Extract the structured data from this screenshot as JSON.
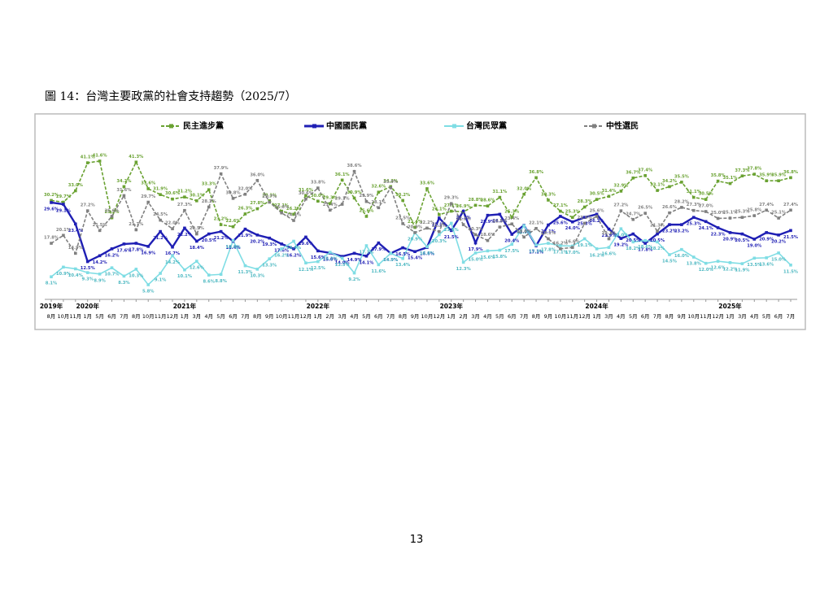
{
  "chart_data": {
    "type": "line",
    "title": "圖 14：台灣主要政黨的社會支持趨勢（2025/7）",
    "categories": [
      "8月",
      "10月",
      "11月",
      "1月",
      "5月",
      "6月",
      "7月",
      "8月",
      "10月",
      "11月",
      "12月",
      "1月",
      "3月",
      "4月",
      "5月",
      "6月",
      "7月",
      "8月",
      "9月",
      "10月",
      "11月",
      "12月",
      "1月",
      "2月",
      "3月",
      "4月",
      "5月",
      "6月",
      "7月",
      "8月",
      "9月",
      "10月",
      "12月",
      "1月",
      "2月",
      "3月",
      "4月",
      "5月",
      "6月",
      "7月",
      "8月",
      "9月",
      "10月",
      "11月",
      "12月",
      "1月",
      "3月",
      "4月",
      "5月",
      "6月",
      "7月",
      "8月",
      "9月",
      "10月",
      "11月",
      "12月",
      "1月",
      "3月",
      "4月",
      "5月",
      "6月",
      "7月"
    ],
    "years": [
      "2019年",
      null,
      null,
      "2020年",
      null,
      null,
      null,
      null,
      null,
      null,
      null,
      "2021年",
      null,
      null,
      null,
      null,
      null,
      null,
      null,
      null,
      null,
      null,
      "2022年",
      null,
      null,
      null,
      null,
      null,
      null,
      null,
      null,
      null,
      null,
      "2023年",
      null,
      null,
      null,
      null,
      null,
      null,
      null,
      null,
      null,
      null,
      null,
      "2024年",
      null,
      null,
      null,
      null,
      null,
      null,
      null,
      null,
      null,
      null,
      "2025年",
      null,
      null,
      null,
      null,
      null
    ],
    "series": [
      {
        "name": "民主進步黨",
        "color": "#6aa232",
        "dash": true,
        "values": [
          30.2,
          29.7,
          33.0,
          41.1,
          41.6,
          25.2,
          34.2,
          41.3,
          33.6,
          31.9,
          30.6,
          31.2,
          30.1,
          33.3,
          23.2,
          22.6,
          26.3,
          27.8,
          30.1,
          27.1,
          26.2,
          31.6,
          30.0,
          29.3,
          36.1,
          30.9,
          25.6,
          32.6,
          34.2,
          30.2,
          22.4,
          33.6,
          26.1,
          27.1,
          26.9,
          28.8,
          28.6,
          31.1,
          25.3,
          32.0,
          36.8,
          30.3,
          27.1,
          25.3,
          28.3,
          30.5,
          31.4,
          32.9,
          36.7,
          37.4,
          33.1,
          34.2,
          35.5,
          31.1,
          30.5,
          35.8,
          35.1,
          37.3,
          37.8,
          35.9,
          35.9,
          36.8
        ],
        "value_labels": [
          "30.2%",
          "29.7%",
          "33.0%",
          "41.1%",
          "41.6%",
          "25.2%",
          "34.2%",
          "41.3%",
          "33.6%",
          "31.9%",
          "30.6%",
          "31.2%",
          "30.1%",
          "33.3%",
          "23.2%",
          "22.6%",
          "26.3%",
          "27.8%",
          "30.1%",
          "27.1%",
          "26.2%",
          "31.6%",
          "30.0%",
          "29.3%",
          "36.1%",
          "30.9%",
          "25.6%",
          "32.6%",
          "34.2%",
          "30.2%",
          "22.4%",
          "33.6%",
          "26.1%",
          "27.1%",
          "26.9%",
          "28.8%",
          "28.6%",
          "31.1%",
          "25.3%",
          "32.0%",
          "36.8%",
          "30.3%",
          "27.1%",
          "25.3%",
          "28.3%",
          "30.5%",
          "31.4%",
          "32.9%",
          "36.7%",
          "37.4%",
          "33.1%",
          "34.2%",
          "35.5%",
          "31.1%",
          "30.5%",
          "35.8%",
          "35.1%",
          "37.3%",
          "37.8%",
          "35.9%",
          "35.9%",
          "36.8%"
        ]
      },
      {
        "name": "中國國民黨",
        "color": "#1f1fb4",
        "dash": false,
        "values": [
          29.6,
          29.1,
          23.4,
          12.5,
          14.2,
          16.2,
          17.6,
          17.8,
          16.9,
          21.2,
          16.7,
          22.2,
          18.4,
          20.5,
          21.2,
          18.4,
          21.9,
          20.2,
          19.3,
          17.6,
          16.2,
          19.6,
          15.6,
          15.0,
          14.0,
          14.9,
          14.1,
          17.9,
          14.9,
          16.5,
          15.4,
          16.6,
          25.1,
          21.5,
          27.1,
          17.9,
          25.9,
          26.2,
          20.4,
          23.0,
          17.1,
          23.1,
          25.6,
          24.0,
          25.3,
          26.2,
          21.9,
          19.2,
          20.5,
          17.8,
          20.5,
          23.2,
          23.2,
          25.3,
          24.1,
          22.3,
          20.9,
          20.5,
          19.0,
          20.9,
          20.2,
          21.5
        ],
        "value_labels": [
          "29.6%",
          "29.1%",
          "23.4%",
          "12.5%",
          "14.2%",
          "16.2%",
          "17.6%",
          "17.8%",
          "16.9%",
          "21.2%",
          "16.7%",
          "22.2%",
          "18.4%",
          "20.5%",
          "21.2%",
          "18.4%",
          "21.9%",
          "20.2%",
          "19.3%",
          "17.6%",
          "16.2%",
          "19.6%",
          "15.6%",
          "15.0%",
          "14.0%",
          "14.9%",
          "14.1%",
          "17.9%",
          "14.9%",
          "16.5%",
          "15.4%",
          "16.6%",
          "25.1%",
          "21.5%",
          "27.1%",
          "17.9%",
          "25.9%",
          "26.2%",
          "20.4%",
          "23.0%",
          "17.1%",
          "23.1%",
          "25.6%",
          "24.0%",
          "25.3%",
          "26.2%",
          "21.9%",
          "19.2%",
          "20.5%",
          "17.8%",
          "20.5%",
          "23.2%",
          "23.2%",
          "25.3%",
          "24.1%",
          "22.3%",
          "20.9%",
          "20.5%",
          "19.0%",
          "20.9%",
          "20.2%",
          "21.5%"
        ]
      },
      {
        "name": "台灣民眾黨",
        "color": "#7fdde4",
        "dash": false,
        "values": [
          8.1,
          10.9,
          10.4,
          9.3,
          8.9,
          10.7,
          8.3,
          10.3,
          5.8,
          9.1,
          14.2,
          10.1,
          12.6,
          8.6,
          8.8,
          18.6,
          11.3,
          10.3,
          13.3,
          16.2,
          18.4,
          12.1,
          12.5,
          15.2,
          13.5,
          9.2,
          17.1,
          11.6,
          14.9,
          13.4,
          20.9,
          16.8,
          20.3,
          23.6,
          12.3,
          15.0,
          15.6,
          15.8,
          17.5,
          22.9,
          17.3,
          17.8,
          17.1,
          17.0,
          19.1,
          16.2,
          16.6,
          22.0,
          18.2,
          18.6,
          18.2,
          14.5,
          16.0,
          13.8,
          12.0,
          12.6,
          12.2,
          11.9,
          13.5,
          13.6,
          15.0,
          11.5
        ],
        "value_labels": [
          "8.1%",
          "10.9%",
          "10.4%",
          "9.3%",
          "8.9%",
          "10.7%",
          "8.3%",
          "10.3%",
          "5.8%",
          "9.1%",
          "14.2%",
          "10.1%",
          "12.6%",
          "8.6%",
          "8.8%",
          "18.6%",
          "11.3%",
          "10.3%",
          "13.3%",
          "16.2%",
          "18.4%",
          "12.1%",
          "12.5%",
          "15.2%",
          "13.5%",
          "9.2%",
          "17.1%",
          "11.6%",
          "14.9%",
          "13.4%",
          "20.9%",
          "16.8%",
          "20.3%",
          "23.6%",
          "12.3%",
          "15.0%",
          "15.6%",
          "15.8%",
          "17.5%",
          "22.9%",
          "17.3%",
          "17.8%",
          "17.1%",
          "17.0%",
          "19.1%",
          "16.2%",
          "16.6%",
          "22.0%",
          "18.2%",
          "18.6%",
          "18.2%",
          "14.5%",
          "16.0%",
          "13.8%",
          "12.0%",
          "12.6%",
          "12.2%",
          "11.9%",
          "13.5%",
          "13.6%",
          "15.0%",
          "11.5%"
        ]
      },
      {
        "name": "中性選民",
        "color": "#808080",
        "dash": true,
        "values": [
          17.8,
          20.1,
          14.9,
          27.2,
          21.5,
          25.6,
          31.6,
          21.7,
          29.7,
          24.5,
          22.0,
          27.3,
          20.5,
          28.3,
          37.9,
          30.8,
          32.0,
          36.0,
          29.7,
          26.6,
          24.4,
          30.6,
          33.8,
          27.4,
          29.1,
          38.6,
          29.9,
          28.1,
          33.9,
          23.5,
          20.9,
          22.2,
          21.2,
          29.3,
          23.2,
          20.3,
          18.6,
          22.5,
          23.4,
          19.6,
          22.1,
          19.1,
          16.2,
          16.6,
          23.6,
          25.6,
          19.1,
          27.2,
          24.7,
          26.5,
          21.3,
          26.6,
          28.2,
          27.3,
          27.0,
          25.0,
          25.1,
          25.3,
          25.8,
          27.4,
          25.1,
          27.4
        ],
        "value_labels": [
          "17.8%",
          "20.1%",
          "14.9%",
          "27.2%",
          "21.5%",
          "25.6%",
          "31.6%",
          "21.7%",
          "29.7%",
          "24.5%",
          "22.0%",
          "27.3%",
          "20.5%",
          "28.3%",
          "37.9%",
          "30.8%",
          "32.0%",
          "36.0%",
          "29.7%",
          "26.6%",
          "24.4%",
          "30.6%",
          "33.8%",
          "27.4%",
          "29.1%",
          "38.6%",
          "29.9%",
          "28.1%",
          "33.9%",
          "23.5%",
          "20.9%",
          "22.2%",
          "21.2%",
          "29.3%",
          "23.2%",
          "20.3%",
          "18.6%",
          "22.5%",
          "23.4%",
          "19.6%",
          "22.1%",
          "19.1%",
          "16.2%",
          "16.6%",
          "23.6%",
          "25.6%",
          "19.1%",
          "27.2%",
          "24.7%",
          "26.5%",
          "21.3%",
          "26.6%",
          "28.2%",
          "27.3%",
          "27.0%",
          "25.0%",
          "25.1%",
          "25.3%",
          "25.8%",
          "27.4%",
          "25.1%",
          "27.4%"
        ]
      }
    ]
  },
  "page_number": "13"
}
